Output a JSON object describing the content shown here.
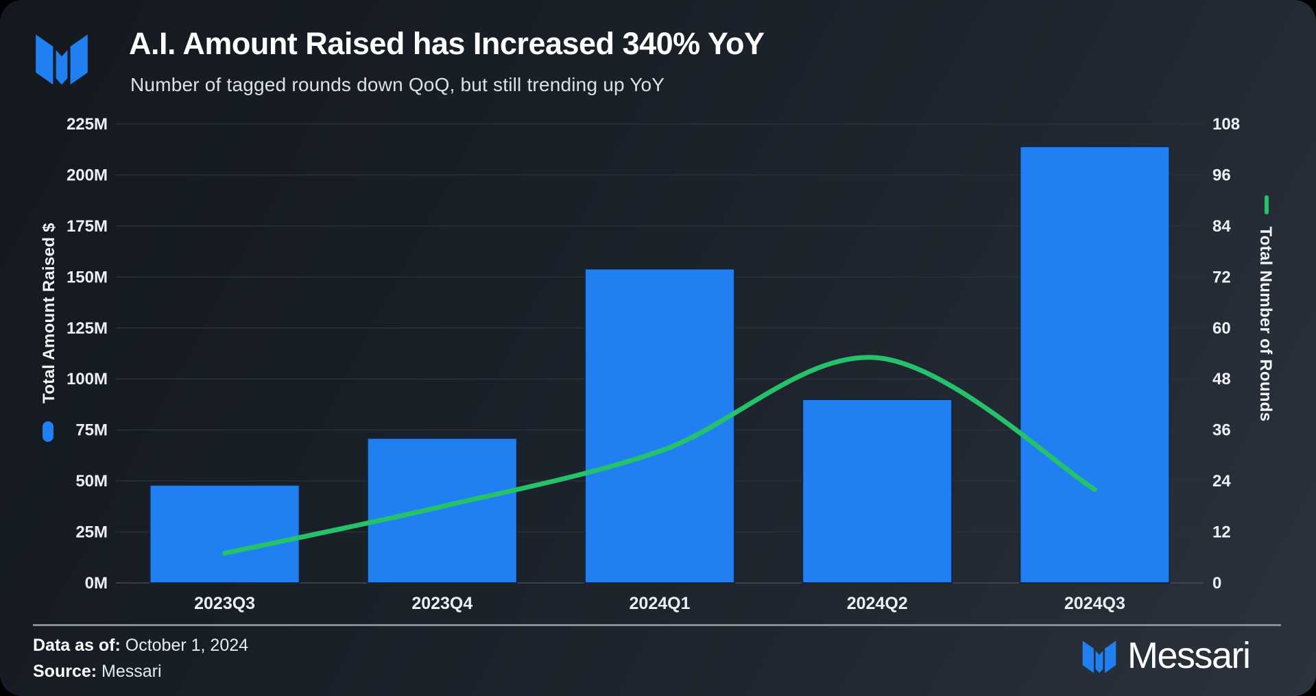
{
  "header": {
    "title": "A.I. Amount Raised has Increased 340% YoY",
    "subtitle": "Number of tagged rounds down QoQ, but still trending up YoY"
  },
  "chart_data": {
    "type": "bar",
    "categories": [
      "2023Q3",
      "2023Q4",
      "2024Q1",
      "2024Q2",
      "2024Q3"
    ],
    "series": [
      {
        "name": "Total Amount Raised $",
        "type": "bar",
        "axis": "left",
        "unit": "M USD",
        "values_millions": [
          48,
          71,
          154,
          90,
          214
        ],
        "color": "#2080F2"
      },
      {
        "name": "Total Number of Rounds",
        "type": "line",
        "axis": "right",
        "values": [
          7,
          18,
          31,
          53,
          22
        ],
        "color": "#26C16B"
      }
    ],
    "left_axis": {
      "label": "Total Amount Raised $",
      "min": 0,
      "max": 225,
      "tick_step_millions": 25,
      "ticks": [
        "225M",
        "200M",
        "175M",
        "150M",
        "125M",
        "100M",
        "75M",
        "50M",
        "25M",
        "0M"
      ]
    },
    "right_axis": {
      "label": "Total Number of Rounds",
      "min": 0,
      "max": 108,
      "tick_step": 12,
      "ticks": [
        "108",
        "96",
        "84",
        "72",
        "60",
        "48",
        "36",
        "24",
        "12",
        "0"
      ]
    },
    "grid": true,
    "legend_position": "axis-titles"
  },
  "footer": {
    "data_as_of_label": "Data as of:",
    "data_as_of_value": "October 1, 2024",
    "source_label": "Source:",
    "source_value": "Messari",
    "brand": "Messari"
  },
  "colors": {
    "accent_blue": "#2080F2",
    "accent_green": "#26C16B"
  }
}
